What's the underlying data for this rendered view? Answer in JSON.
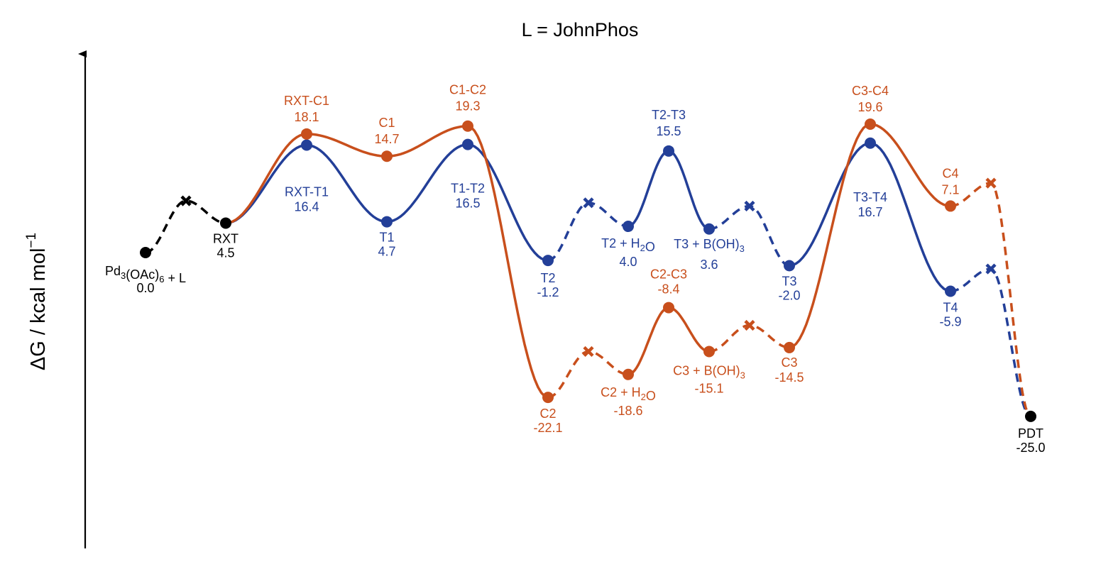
{
  "chart_data": {
    "type": "line",
    "title": "L = JohnPhos",
    "ylabel": {
      "text": "ΔG / kcal mol",
      "sup": "−1"
    },
    "colors": {
      "common": "#000000",
      "T": "#233f98",
      "C": "#c84f1c"
    },
    "common": [
      {
        "name": [
          "Pd",
          {
            "sub": "3"
          },
          "(OAc)",
          {
            "sub": "6"
          },
          " + L"
        ],
        "value": "0.0"
      },
      {
        "name": [
          "RXT"
        ],
        "value": "4.5"
      },
      {
        "name": [
          "PDT"
        ],
        "value": "-25.0"
      }
    ],
    "series": [
      {
        "key": "T",
        "points": [
          {
            "name": [
              "RXT-T1"
            ],
            "value": "16.4"
          },
          {
            "name": [
              "T1"
            ],
            "value": "4.7"
          },
          {
            "name": [
              "T1-T2"
            ],
            "value": "16.5"
          },
          {
            "name": [
              "T2"
            ],
            "value": "-1.2"
          },
          {
            "name": [
              "T2 + H",
              {
                "sub": "2"
              },
              "O"
            ],
            "value": "4.0"
          },
          {
            "name": [
              "T2-T3"
            ],
            "value": "15.5"
          },
          {
            "name": [
              "T3 + B(OH)",
              {
                "sub": "3"
              }
            ],
            "value": "3.6"
          },
          {
            "name": [
              "T3"
            ],
            "value": "-2.0"
          },
          {
            "name": [
              "T3-T4"
            ],
            "value": "16.7"
          },
          {
            "name": [
              "T4"
            ],
            "value": "-5.9"
          }
        ]
      },
      {
        "key": "C",
        "points": [
          {
            "name": [
              "RXT-C1"
            ],
            "value": "18.1"
          },
          {
            "name": [
              "C1"
            ],
            "value": "14.7"
          },
          {
            "name": [
              "C1-C2"
            ],
            "value": "19.3"
          },
          {
            "name": [
              "C2"
            ],
            "value": "-22.1"
          },
          {
            "name": [
              "C2 + H",
              {
                "sub": "2"
              },
              "O"
            ],
            "value": "-18.6"
          },
          {
            "name": [
              "C2-C3"
            ],
            "value": "-8.4"
          },
          {
            "name": [
              "C3 + B(OH)",
              {
                "sub": "3"
              }
            ],
            "value": "-15.1"
          },
          {
            "name": [
              "C3"
            ],
            "value": "-14.5"
          },
          {
            "name": [
              "C3-C4"
            ],
            "value": "19.6"
          },
          {
            "name": [
              "C4"
            ],
            "value": "7.1"
          }
        ]
      }
    ]
  }
}
